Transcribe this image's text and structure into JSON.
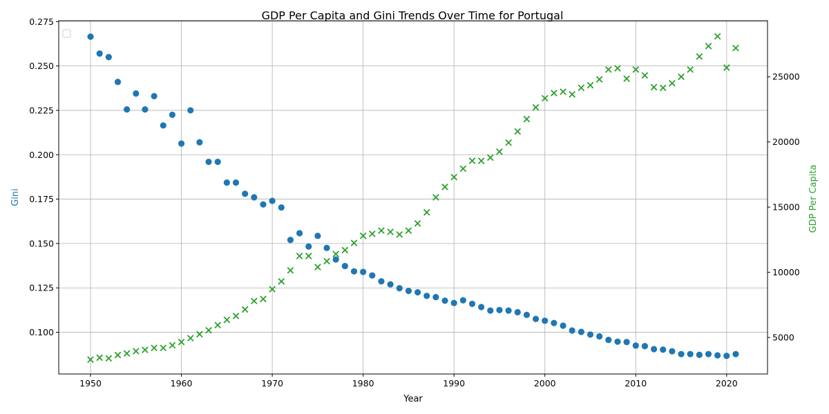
{
  "chart_data": {
    "type": "scatter",
    "title": "GDP Per Capita and Gini Trends Over Time for Portugal",
    "xlabel": "Year",
    "ylabel_left": "Gini",
    "ylabel_right": "GDP Per Capita",
    "xlim": [
      1946.5,
      2024.5
    ],
    "ylim_left": [
      0.0765,
      0.2755
    ],
    "ylim_right": [
      2200,
      29300
    ],
    "x_ticks": [
      1950,
      1960,
      1970,
      1980,
      1990,
      2000,
      2010,
      2020
    ],
    "y_left_ticks": [
      0.1,
      0.125,
      0.15,
      0.175,
      0.2,
      0.225,
      0.25,
      0.275
    ],
    "y_left_tick_labels": [
      "0.100",
      "0.125",
      "0.150",
      "0.175",
      "0.200",
      "0.225",
      "0.250",
      "0.275"
    ],
    "y_right_ticks": [
      5000,
      10000,
      15000,
      20000,
      25000
    ],
    "grid": true,
    "legend": "upper-left (empty)",
    "colors": {
      "gini": "#1f77b4",
      "gdp": "#2ca02c"
    },
    "series": [
      {
        "key": "gini",
        "axis": "left",
        "marker": "circle",
        "x": [
          1950,
          1951,
          1952,
          1953,
          1954,
          1955,
          1956,
          1957,
          1958,
          1959,
          1960,
          1961,
          1962,
          1963,
          1964,
          1965,
          1966,
          1967,
          1968,
          1969,
          1970,
          1971,
          1972,
          1973,
          1974,
          1975,
          1976,
          1977,
          1978,
          1979,
          1980,
          1981,
          1982,
          1983,
          1984,
          1985,
          1986,
          1987,
          1988,
          1989,
          1990,
          1991,
          1992,
          1993,
          1994,
          1995,
          1996,
          1997,
          1998,
          1999,
          2000,
          2001,
          2002,
          2003,
          2004,
          2005,
          2006,
          2007,
          2008,
          2009,
          2010,
          2011,
          2012,
          2013,
          2014,
          2015,
          2016,
          2017,
          2018,
          2019,
          2020,
          2021
        ],
        "y": [
          0.2665,
          0.257,
          0.255,
          0.241,
          0.2255,
          0.2345,
          0.2255,
          0.233,
          0.2165,
          0.2225,
          0.2063,
          0.225,
          0.207,
          0.196,
          0.196,
          0.1843,
          0.1843,
          0.178,
          0.176,
          0.172,
          0.174,
          0.1703,
          0.152,
          0.1558,
          0.1483,
          0.1543,
          0.1475,
          0.141,
          0.1373,
          0.1343,
          0.134,
          0.132,
          0.1287,
          0.127,
          0.1248,
          0.1233,
          0.1225,
          0.1205,
          0.1198,
          0.1178,
          0.1165,
          0.118,
          0.116,
          0.1142,
          0.1122,
          0.1125,
          0.1122,
          0.1113,
          0.1098,
          0.1075,
          0.1065,
          0.1052,
          0.1037,
          0.101,
          0.1002,
          0.0987,
          0.0977,
          0.0957,
          0.0947,
          0.0945,
          0.0925,
          0.0922,
          0.0905,
          0.0902,
          0.0893,
          0.0877,
          0.0877,
          0.0873,
          0.0877,
          0.087,
          0.0867,
          0.0877
        ]
      },
      {
        "key": "gdp",
        "axis": "right",
        "marker": "x",
        "x": [
          1950,
          1951,
          1952,
          1953,
          1954,
          1955,
          1956,
          1957,
          1958,
          1959,
          1960,
          1961,
          1962,
          1963,
          1964,
          1965,
          1966,
          1967,
          1968,
          1969,
          1970,
          1971,
          1972,
          1973,
          1974,
          1975,
          1976,
          1977,
          1978,
          1979,
          1980,
          1981,
          1982,
          1983,
          1984,
          1985,
          1986,
          1987,
          1988,
          1989,
          1990,
          1991,
          1992,
          1993,
          1994,
          1995,
          1996,
          1997,
          1998,
          1999,
          2000,
          2001,
          2002,
          2003,
          2004,
          2005,
          2006,
          2007,
          2008,
          2009,
          2010,
          2011,
          2012,
          2013,
          2014,
          2015,
          2016,
          2017,
          2018,
          2019,
          2020,
          2021
        ],
        "y": [
          3300,
          3450,
          3400,
          3650,
          3780,
          3950,
          4050,
          4200,
          4200,
          4400,
          4650,
          4950,
          5250,
          5550,
          5950,
          6350,
          6650,
          7150,
          7800,
          7950,
          8700,
          9300,
          10150,
          11250,
          11250,
          10400,
          10850,
          11400,
          11700,
          12250,
          12800,
          12950,
          13200,
          13100,
          12900,
          13200,
          13750,
          14600,
          15750,
          16550,
          17300,
          17950,
          18550,
          18550,
          18800,
          19250,
          19950,
          20800,
          21750,
          22650,
          23350,
          23750,
          23850,
          23650,
          24150,
          24350,
          24800,
          25550,
          25650,
          24850,
          25550,
          25100,
          24200,
          24150,
          24500,
          25000,
          25550,
          26550,
          27350,
          28100,
          25700,
          27200
        ]
      }
    ]
  }
}
